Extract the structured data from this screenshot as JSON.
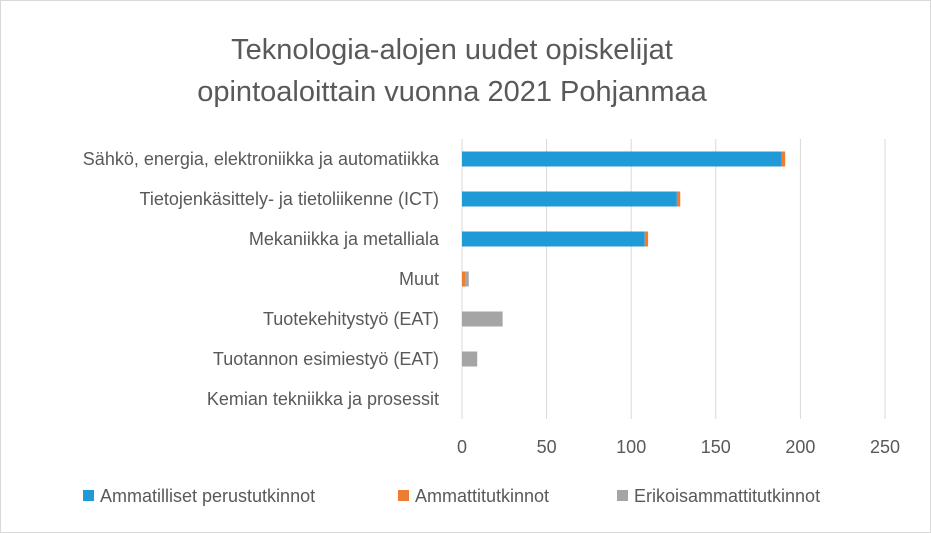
{
  "chart_data": {
    "type": "bar",
    "orientation": "horizontal",
    "stacked": true,
    "title_lines": [
      "Teknologia-alojen uudet opiskelijat",
      "opintoaloittain vuonna 2021 Pohjanmaa"
    ],
    "categories": [
      "Sähkö, energia, elektroniikka ja automatiikka",
      "Tietojenkäsittely- ja tietoliikenne (ICT)",
      "Mekaniikka ja metalliala",
      "Muut",
      "Tuotekehitystyö (EAT)",
      "Tuotannon esimiestyö (EAT)",
      "Kemian tekniikka ja prosessit"
    ],
    "series": [
      {
        "name": "Ammatilliset perustutkinnot",
        "color": "#1f9ad6",
        "values": [
          189,
          127,
          108,
          0,
          0,
          0,
          0
        ]
      },
      {
        "name": "Ammattitutkinnot",
        "color": "#ed7d31",
        "values": [
          2,
          2,
          2,
          2,
          0,
          0,
          0
        ]
      },
      {
        "name": "Erikoisammattitutkinnot",
        "color": "#a5a5a5",
        "values": [
          0,
          0,
          0,
          2,
          24,
          9,
          0
        ]
      }
    ],
    "xlim": [
      0,
      250
    ],
    "xticks": [
      "0",
      "50",
      "100",
      "150",
      "200",
      "250"
    ],
    "xlabel": "",
    "ylabel": "",
    "grid": true,
    "legend_position": "bottom"
  }
}
